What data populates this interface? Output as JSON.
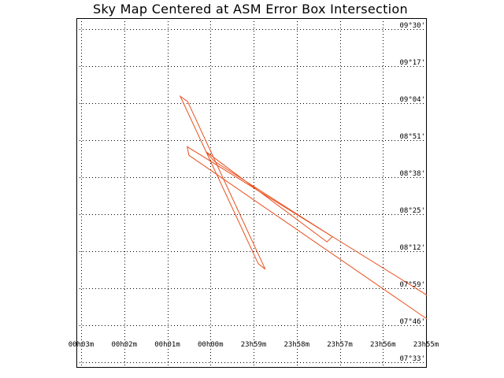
{
  "chart_data": {
    "type": "scatter",
    "title": "Sky Map Centered at ASM Error Box Intersection",
    "grid": true,
    "x_axis": {
      "quantity": "right ascension",
      "direction": "decreasing to the right",
      "ticks": [
        {
          "label": "00h03m",
          "minutes": 3
        },
        {
          "label": "00h02m",
          "minutes": 2
        },
        {
          "label": "00h01m",
          "minutes": 1
        },
        {
          "label": "00h00m",
          "minutes": 0
        },
        {
          "label": "23h59m",
          "minutes": -1
        },
        {
          "label": "23h58m",
          "minutes": -2
        },
        {
          "label": "23h57m",
          "minutes": -3
        },
        {
          "label": "23h56m",
          "minutes": -4
        },
        {
          "label": "23h55m",
          "minutes": -5
        }
      ],
      "range_minutes": [
        3,
        -5
      ]
    },
    "y_axis": {
      "quantity": "declination",
      "ticks": [
        {
          "label": "09°30'",
          "arcmin": 570
        },
        {
          "label": "09°17'",
          "arcmin": 557
        },
        {
          "label": "09°04'",
          "arcmin": 544
        },
        {
          "label": "08°51'",
          "arcmin": 531
        },
        {
          "label": "08°38'",
          "arcmin": 518
        },
        {
          "label": "08°25'",
          "arcmin": 505
        },
        {
          "label": "08°12'",
          "arcmin": 492
        },
        {
          "label": "07°59'",
          "arcmin": 479
        },
        {
          "label": "07°46'",
          "arcmin": 466
        },
        {
          "label": "07°33'",
          "arcmin": 453
        }
      ],
      "range_arcmin": [
        453,
        570
      ]
    },
    "error_boxes": [
      {
        "color": "#e8501e",
        "clip_to_frame": false,
        "vertices": [
          [
            0.53,
            544.6
          ],
          [
            0.7,
            546.4
          ],
          [
            -1.11,
            487.6
          ],
          [
            -1.27,
            485.7
          ]
        ]
      },
      {
        "color": "#e8501e",
        "clip_to_frame": false,
        "vertices": [
          [
            0.1,
            526.9
          ],
          [
            -0.08,
            523.7
          ],
          [
            -2.83,
            497.1
          ],
          [
            -2.7,
            495.3
          ]
        ]
      },
      {
        "color": "#e8501e",
        "clip_to_frame": true,
        "vertices": [
          [
            0.54,
            528.7
          ],
          [
            0.5,
            525.7
          ],
          [
            -5.05,
            467.9
          ],
          [
            -5.05,
            476.3
          ]
        ]
      }
    ]
  }
}
